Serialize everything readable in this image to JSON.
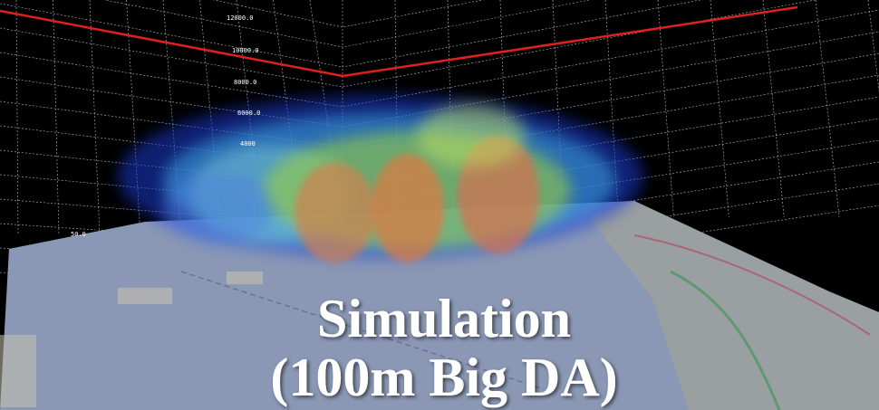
{
  "axis_labels": [
    "12000.0",
    "10000.0",
    "8000.0",
    "6000.0",
    "4000",
    "50.0"
  ],
  "caption": {
    "line1": "Simulation",
    "line2": "(100m Big DA)"
  }
}
